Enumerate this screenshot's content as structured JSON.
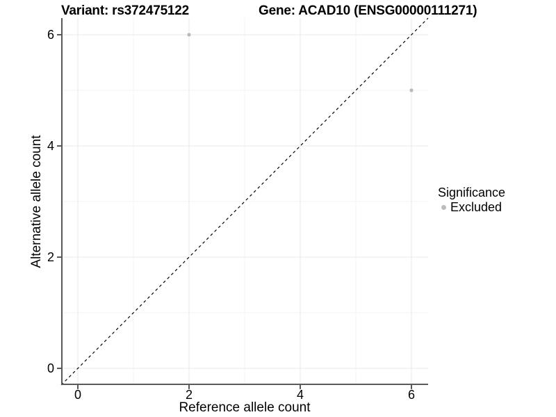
{
  "chart_data": {
    "type": "scatter",
    "titles": {
      "left": "Variant: rs372475122",
      "right": "Gene: ACAD10 (ENSG00000111271)"
    },
    "xlabel": "Reference allele count",
    "ylabel": "Alternative allele count",
    "xlim": [
      -0.3,
      6.3
    ],
    "ylim": [
      -0.3,
      6.3
    ],
    "xticks": [
      0,
      2,
      4,
      6
    ],
    "yticks": [
      0,
      2,
      4,
      6
    ],
    "xticks_minor": [
      1,
      3,
      5
    ],
    "yticks_minor": [
      1,
      3,
      5
    ],
    "grid": true,
    "points": [
      {
        "x": 2,
        "y": 6,
        "series": "Excluded"
      },
      {
        "x": 6,
        "y": 5,
        "series": "Excluded"
      }
    ],
    "reference_line": {
      "type": "identity",
      "style": "dashed",
      "from": [
        -0.3,
        -0.3
      ],
      "to": [
        6.3,
        6.3
      ],
      "color": "#000000"
    },
    "legend": {
      "title": "Significance",
      "position": "right",
      "items": [
        {
          "label": "Excluded",
          "color": "#bcbcbc"
        }
      ]
    },
    "colors": {
      "point": "#b9b9b9",
      "grid_major": "#e8e8e8",
      "grid_minor": "#f3f3f3",
      "axis": "#595959",
      "background": "#ffffff"
    }
  }
}
